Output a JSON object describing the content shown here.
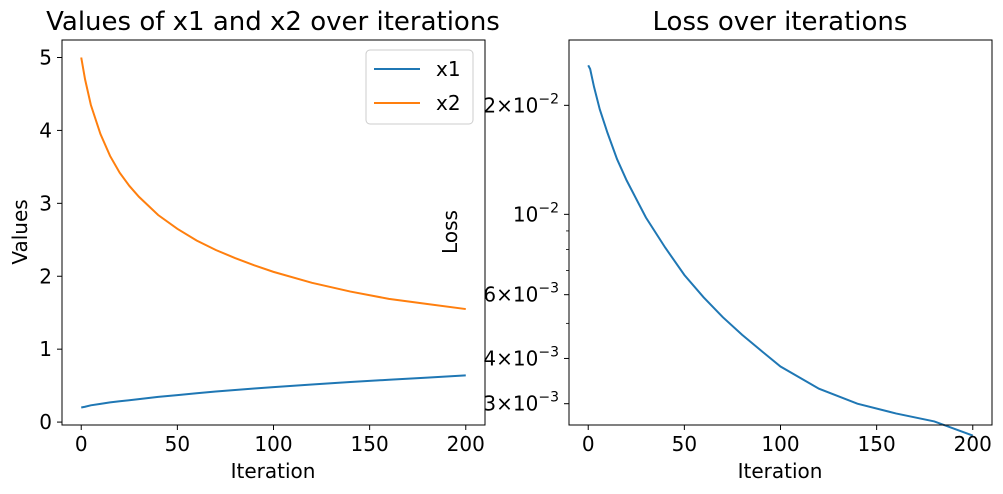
{
  "chart_data": [
    {
      "type": "line",
      "title": "Values of x1 and x2 over iterations",
      "xlabel": "Iteration",
      "ylabel": "Values",
      "xlim": [
        -10,
        210
      ],
      "ylim": [
        -0.04,
        5.24
      ],
      "x_ticks": [
        0,
        50,
        100,
        150,
        200
      ],
      "x_tick_labels": [
        "0",
        "50",
        "100",
        "150",
        "200"
      ],
      "y_ticks": [
        0,
        1,
        2,
        3,
        4,
        5
      ],
      "y_tick_labels": [
        "0",
        "1",
        "2",
        "3",
        "4",
        "5"
      ],
      "grid": false,
      "legend": "top-right",
      "series": [
        {
          "name": "x1",
          "color": "#1f77b4",
          "x": [
            0,
            2,
            5,
            10,
            15,
            20,
            30,
            40,
            50,
            60,
            70,
            80,
            90,
            100,
            120,
            140,
            160,
            180,
            200
          ],
          "y": [
            0.2,
            0.21,
            0.23,
            0.25,
            0.27,
            0.285,
            0.315,
            0.345,
            0.37,
            0.395,
            0.42,
            0.44,
            0.46,
            0.48,
            0.515,
            0.55,
            0.58,
            0.61,
            0.64
          ]
        },
        {
          "name": "x2",
          "color": "#ff7f0e",
          "x": [
            0,
            2,
            5,
            10,
            15,
            20,
            25,
            30,
            40,
            50,
            60,
            70,
            80,
            90,
            100,
            120,
            140,
            160,
            180,
            200
          ],
          "y": [
            5.0,
            4.7,
            4.35,
            3.95,
            3.65,
            3.42,
            3.24,
            3.09,
            2.84,
            2.65,
            2.49,
            2.36,
            2.25,
            2.15,
            2.06,
            1.91,
            1.79,
            1.69,
            1.62,
            1.55
          ]
        }
      ]
    },
    {
      "type": "line",
      "title": "Loss over iterations",
      "xlabel": "Iteration",
      "ylabel": "Loss",
      "yscale": "log",
      "xlim": [
        -10,
        210
      ],
      "ylim": [
        0.00262,
        0.0303
      ],
      "x_ticks": [
        0,
        50,
        100,
        150,
        200
      ],
      "x_tick_labels": [
        "0",
        "50",
        "100",
        "150",
        "200"
      ],
      "y_ticks": [
        0.02,
        0.01,
        0.006,
        0.004,
        0.003
      ],
      "y_tick_labels": [
        {
          "mantissa": "2",
          "exponent": "−2"
        },
        {
          "mantissa": "",
          "exponent": "−2"
        },
        {
          "mantissa": "6",
          "exponent": "−3"
        },
        {
          "mantissa": "4",
          "exponent": "−3"
        },
        {
          "mantissa": "3",
          "exponent": "−3"
        }
      ],
      "y_minor_ticks": [
        0.005,
        0.007,
        0.008,
        0.009
      ],
      "grid": false,
      "series": [
        {
          "color": "#1f77b4",
          "x": [
            0,
            1,
            3,
            6,
            10,
            15,
            20,
            30,
            40,
            50,
            60,
            70,
            80,
            90,
            100,
            120,
            140,
            160,
            180,
            200
          ],
          "y": [
            0.0258,
            0.0252,
            0.0225,
            0.0195,
            0.0168,
            0.0142,
            0.0124,
            0.0098,
            0.0081,
            0.0068,
            0.0059,
            0.0052,
            0.00465,
            0.0042,
            0.0038,
            0.0033,
            0.003,
            0.00282,
            0.00268,
            0.00245
          ]
        }
      ]
    }
  ]
}
